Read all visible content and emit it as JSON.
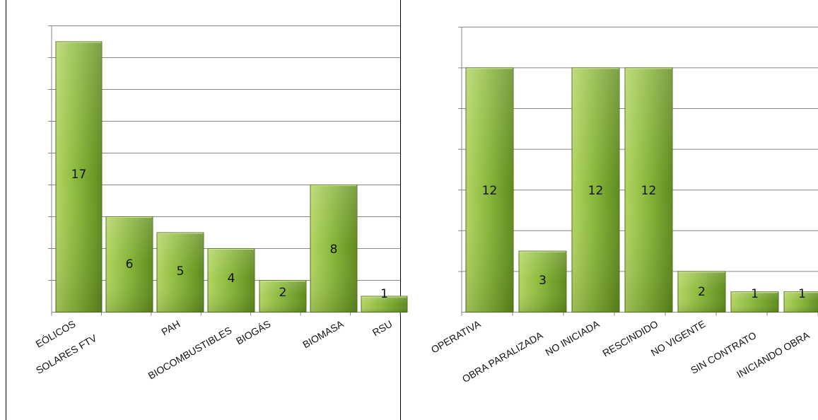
{
  "colors": {
    "bar_light": "#b3d462",
    "bar_mid": "#8ab83b",
    "bar_dark": "#5f8a1e",
    "bar_edge": "#4e7218",
    "gridline": "#868686",
    "axis": "#868686",
    "panel_border": "#000000"
  },
  "chart_data": [
    {
      "type": "bar",
      "categories": [
        "EÓLICOS",
        "SOLARES FTV",
        "PAH",
        "BIOCOMBUSTIBLES",
        "BIOGÁS",
        "BIOMASA",
        "RSU"
      ],
      "values": [
        17,
        6,
        5,
        4,
        2,
        8,
        1
      ],
      "value_labels": [
        "17",
        "6",
        "5",
        "4",
        "2",
        "8",
        "1"
      ],
      "title": "",
      "xlabel": "",
      "ylabel": "",
      "ylim": [
        0,
        18
      ],
      "grid": true,
      "legend": "none"
    },
    {
      "type": "bar",
      "categories": [
        "OPERATIVA",
        "OBRA PARALIZADA",
        "NO INICIADA",
        "RESCINDIDO",
        "NO VIGENTE",
        "SIN CONTRATO",
        "INICIANDO OBRA"
      ],
      "values": [
        12,
        3,
        12,
        12,
        2,
        1,
        1
      ],
      "value_labels": [
        "12",
        "3",
        "12",
        "12",
        "2",
        "1",
        "1"
      ],
      "title": "",
      "xlabel": "",
      "ylabel": "",
      "ylim": [
        0,
        14
      ],
      "grid": true,
      "legend": "none"
    }
  ]
}
